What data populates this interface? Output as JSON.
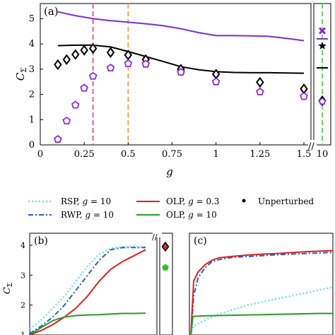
{
  "panel_labels": {
    "a": "(a)",
    "b": "(b)",
    "c": "(c)"
  },
  "axis_labels": {
    "a_x": "g",
    "a_y": "C",
    "a_y_sub": "Σ",
    "b_y": "C",
    "b_y_sub": "Σ"
  },
  "legend": {
    "rsp": {
      "text": "RSP, ",
      "g_text": "g",
      "eq": " = 10"
    },
    "rwp": {
      "text": "RWP, ",
      "g_text": "g",
      "eq": " = 10"
    },
    "olp03": {
      "text": "OLP, ",
      "g_text": "g",
      "eq": " = 0.3"
    },
    "olp10": {
      "text": "OLP, ",
      "g_text": "g",
      "eq": " = 10"
    },
    "unperturbed": {
      "text": "Unperturbed"
    }
  },
  "colors": {
    "purple": "#7a2fd6",
    "black": "#000000",
    "pink": "#e8528a",
    "orange": "#f2a24a",
    "green_dash": "#5fd35f",
    "marker_purple": "#8a2be2",
    "rsp": "#6fe0f0",
    "rwp": "#2a5fc8",
    "olp03": "#dd2020",
    "olp10": "#2a9a2a",
    "diamond_red": "#c0392b",
    "pentagon_green": "#2fbf2f"
  },
  "chart_data": [
    {
      "panel": "a",
      "type": "scatter",
      "xlabel": "g",
      "ylabel": "CΣ",
      "xlim": [
        0,
        1.5
      ],
      "ylim": [
        0,
        5.6
      ],
      "x_ticks": [
        "0",
        "0.25",
        "0.5",
        "0.75",
        "1",
        "1.25",
        "1.5"
      ],
      "x_tick_values": [
        0,
        0.25,
        0.5,
        0.75,
        1,
        1.25,
        1.5
      ],
      "y_ticks": [
        "0",
        "1",
        "2",
        "3",
        "4",
        "5"
      ],
      "y_tick_values": [
        0,
        1,
        2,
        3,
        4,
        5
      ],
      "broken_axis_tick": "10",
      "vertical_markers": [
        0.3,
        0.5
      ],
      "series": [
        {
          "kind": "line",
          "color_key": "purple",
          "x": [
            0.1,
            0.2,
            0.3,
            0.4,
            0.5,
            0.6,
            0.7,
            0.8,
            0.9,
            1.0,
            1.1,
            1.2,
            1.3,
            1.4,
            1.5
          ],
          "y": [
            5.27,
            5.12,
            5.0,
            4.92,
            4.86,
            4.8,
            4.72,
            4.6,
            4.45,
            4.33,
            4.33,
            4.32,
            4.3,
            4.22,
            4.13
          ]
        },
        {
          "kind": "line",
          "color_key": "black",
          "x": [
            0.1,
            0.2,
            0.3,
            0.4,
            0.5,
            0.6,
            0.7,
            0.8,
            0.9,
            1.0,
            1.1,
            1.2,
            1.3,
            1.4,
            1.5
          ],
          "y": [
            3.93,
            3.95,
            3.95,
            3.88,
            3.7,
            3.5,
            3.3,
            3.1,
            2.98,
            2.9,
            2.87,
            2.86,
            2.86,
            2.85,
            2.84
          ]
        },
        {
          "kind": "diamond",
          "color_key": "black",
          "x": [
            0.1,
            0.15,
            0.2,
            0.25,
            0.3,
            0.4,
            0.5,
            0.6,
            0.8,
            1.0,
            1.25,
            1.5
          ],
          "y": [
            3.18,
            3.38,
            3.58,
            3.75,
            3.82,
            3.66,
            3.56,
            3.38,
            3.0,
            2.8,
            2.48,
            2.22
          ]
        },
        {
          "kind": "pentagon",
          "color_key": "marker_purple",
          "x": [
            0.1,
            0.15,
            0.2,
            0.25,
            0.3,
            0.4,
            0.5,
            0.6,
            0.8,
            1.0,
            1.25,
            1.5
          ],
          "y": [
            0.22,
            0.95,
            1.58,
            2.25,
            2.72,
            3.05,
            3.22,
            3.2,
            2.88,
            2.5,
            2.1,
            1.92
          ]
        }
      ],
      "g10_values": {
        "purple_line": 4.2,
        "black_line": 3.05,
        "cross": 4.52,
        "star": 3.92,
        "diamond": 1.75,
        "pentagon": 1.72
      }
    },
    {
      "panel": "b",
      "type": "line",
      "ylabel": "CΣ",
      "ylim": [
        1,
        4.4
      ],
      "y_ticks": [
        "1",
        "2",
        "3",
        "4"
      ],
      "y_tick_values": [
        1,
        2,
        3,
        4
      ],
      "x_range": [
        0,
        1
      ],
      "series": [
        {
          "name": "RSP, g = 10",
          "color_key": "rsp",
          "x": [
            0,
            0.1,
            0.2,
            0.3,
            0.4,
            0.5,
            0.6,
            0.7,
            0.8,
            1.0
          ],
          "y": [
            1.2,
            1.5,
            1.9,
            2.3,
            2.8,
            3.3,
            3.7,
            3.9,
            3.95,
            3.95
          ]
        },
        {
          "name": "RWP, g = 10",
          "color_key": "rwp",
          "x": [
            0,
            0.1,
            0.2,
            0.3,
            0.4,
            0.5,
            0.6,
            0.7,
            0.8,
            1.0
          ],
          "y": [
            1.05,
            1.3,
            1.6,
            2.0,
            2.5,
            3.0,
            3.5,
            3.85,
            3.92,
            3.92
          ]
        },
        {
          "name": "OLP, g = 0.3",
          "color_key": "olp03",
          "x": [
            0,
            0.1,
            0.2,
            0.3,
            0.4,
            0.5,
            0.6,
            0.7,
            0.8,
            0.9,
            1.0
          ],
          "y": [
            1.0,
            1.15,
            1.35,
            1.6,
            1.9,
            2.3,
            2.8,
            3.2,
            3.45,
            3.65,
            3.85
          ]
        },
        {
          "name": "OLP, g = 10",
          "color_key": "olp10",
          "x": [
            0,
            0.1,
            0.2,
            0.3,
            0.4,
            0.5,
            0.6,
            0.7,
            0.8,
            0.9,
            1.0
          ],
          "y": [
            1.0,
            1.25,
            1.48,
            1.6,
            1.65,
            1.67,
            1.68,
            1.7,
            1.72,
            1.72,
            1.73
          ]
        }
      ],
      "side_markers": {
        "diamond": 3.95,
        "pentagon": 3.25
      }
    },
    {
      "panel": "c",
      "type": "line",
      "ylim": [
        1,
        4.4
      ],
      "x_range": [
        0,
        1
      ],
      "series": [
        {
          "name": "RSP, g = 10",
          "color_key": "rsp",
          "x": [
            0,
            0.02,
            0.1,
            0.2,
            0.3,
            0.4,
            0.5,
            0.6,
            0.7,
            0.8,
            0.9,
            1.0
          ],
          "y": [
            1.0,
            1.3,
            1.5,
            1.7,
            1.85,
            2.0,
            2.1,
            2.2,
            2.3,
            2.4,
            2.5,
            2.6
          ]
        },
        {
          "name": "RWP, g = 10",
          "color_key": "rwp",
          "x": [
            0,
            0.02,
            0.05,
            0.1,
            0.15,
            0.2,
            0.3,
            0.4,
            0.5,
            0.6,
            0.7,
            0.8,
            0.9,
            1.0
          ],
          "y": [
            1.0,
            2.3,
            2.9,
            3.25,
            3.45,
            3.52,
            3.6,
            3.62,
            3.65,
            3.68,
            3.7,
            3.72,
            3.74,
            3.76
          ]
        },
        {
          "name": "OLP, g = 0.3",
          "color_key": "olp03",
          "x": [
            0,
            0.02,
            0.05,
            0.1,
            0.15,
            0.2,
            0.3,
            0.4,
            0.5,
            0.6,
            0.7,
            0.8,
            0.9,
            1.0
          ],
          "y": [
            1.0,
            2.8,
            3.1,
            3.35,
            3.5,
            3.58,
            3.63,
            3.67,
            3.7,
            3.72,
            3.75,
            3.78,
            3.8,
            3.82
          ]
        },
        {
          "name": "OLP, g = 10",
          "color_key": "olp10",
          "x": [
            0,
            0.015,
            0.05,
            0.1,
            0.3,
            0.5,
            0.7,
            0.9,
            1.0
          ],
          "y": [
            1.0,
            1.62,
            1.63,
            1.64,
            1.66,
            1.68,
            1.7,
            1.72,
            1.72
          ]
        }
      ]
    }
  ]
}
